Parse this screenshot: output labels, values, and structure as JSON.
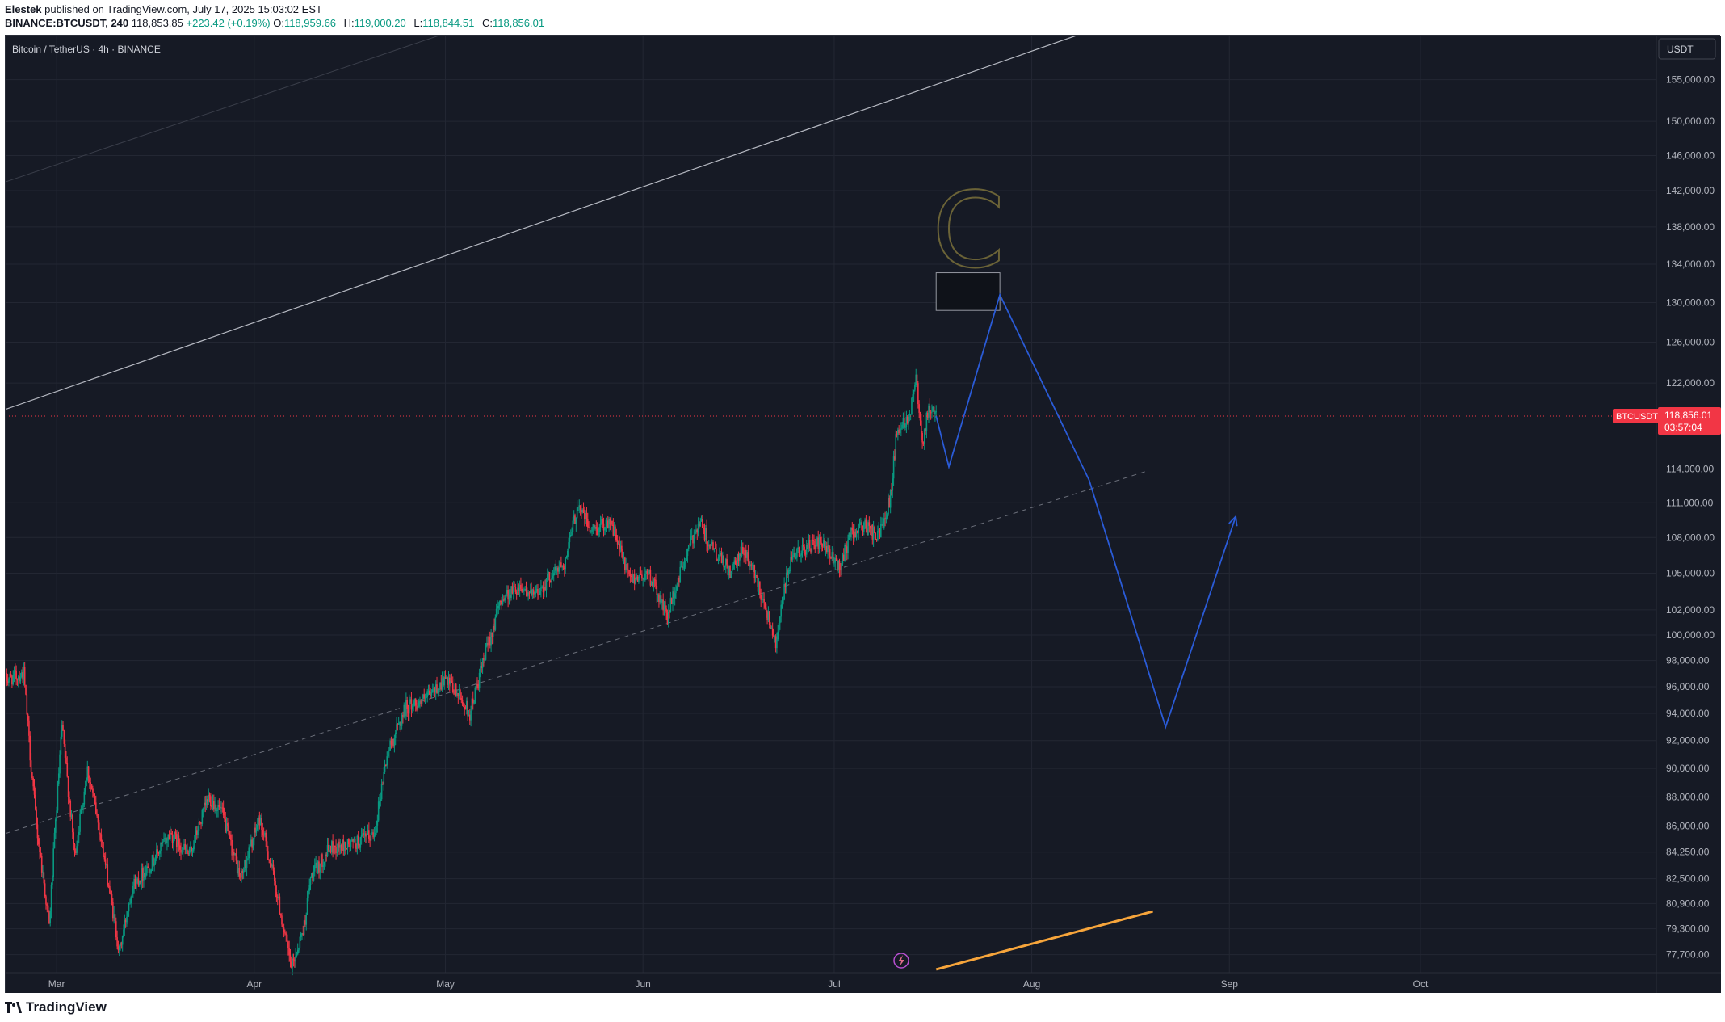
{
  "header": {
    "author": "Elestek",
    "published_text": "published on TradingView.com, July 17, 2025 15:03:02 EST",
    "symbol_line": "BINANCE:BTCUSDT, 240",
    "last": "118,853.85",
    "change": "+223.42 (+0.19%)",
    "o_label": "O:",
    "o_value": "118,959.66",
    "h_label": "H:",
    "h_value": "119,000.20",
    "l_label": "L:",
    "l_value": "118,844.51",
    "c_label": "C:",
    "c_value": "118,856.01"
  },
  "footer": {
    "brand": "TradingView"
  },
  "colors": {
    "background": "#161a25",
    "grid": "#232733",
    "up": "#089981",
    "down": "#f23645",
    "wave": "#2a5bd7",
    "trend": "#f7a53b",
    "letter": "#6b6337",
    "axis_text": "#b2b5be"
  },
  "chart_data": {
    "type": "candlestick",
    "title": "Bitcoin / TetherUS · 4h · BINANCE",
    "currency": "USDT",
    "scale": "log",
    "ylim": [
      76600,
      160500
    ],
    "x_range": [
      "2025-02-21",
      "2025-11-07"
    ],
    "y_ticks": [
      "155,000.00",
      "150,000.00",
      "146,000.00",
      "142,000.00",
      "138,000.00",
      "134,000.00",
      "130,000.00",
      "126,000.00",
      "122,000.00",
      "114,000.00",
      "111,000.00",
      "108,000.00",
      "105,000.00",
      "102,000.00",
      "100,000.00",
      "98,000.00",
      "96,000.00",
      "94,000.00",
      "92,000.00",
      "90,000.00",
      "88,000.00",
      "86,000.00",
      "84,250.00",
      "82,500.00",
      "80,900.00",
      "79,300.00",
      "77,700.00"
    ],
    "x_ticks": [
      {
        "label": "Mar",
        "date": "2025-03-01"
      },
      {
        "label": "Apr",
        "date": "2025-04-01"
      },
      {
        "label": "May",
        "date": "2025-05-01"
      },
      {
        "label": "Jun",
        "date": "2025-06-01"
      },
      {
        "label": "Jul",
        "date": "2025-07-01"
      },
      {
        "label": "Aug",
        "date": "2025-08-01"
      },
      {
        "label": "Sep",
        "date": "2025-09-01"
      },
      {
        "label": "Oct",
        "date": "2025-10-01"
      }
    ],
    "price_path": [
      [
        "2025-02-21",
        96500
      ],
      [
        "2025-02-24",
        97000
      ],
      [
        "2025-02-25",
        91000
      ],
      [
        "2025-02-26",
        86000
      ],
      [
        "2025-02-28",
        79500
      ],
      [
        "2025-03-02",
        93000
      ],
      [
        "2025-03-04",
        84000
      ],
      [
        "2025-03-06",
        90000
      ],
      [
        "2025-03-08",
        85500
      ],
      [
        "2025-03-11",
        77800
      ],
      [
        "2025-03-13",
        82000
      ],
      [
        "2025-03-16",
        83500
      ],
      [
        "2025-03-19",
        85500
      ],
      [
        "2025-03-22",
        84000
      ],
      [
        "2025-03-25",
        88000
      ],
      [
        "2025-03-27",
        87000
      ],
      [
        "2025-03-30",
        82500
      ],
      [
        "2025-04-02",
        86500
      ],
      [
        "2025-04-04",
        83000
      ],
      [
        "2025-04-07",
        76800
      ],
      [
        "2025-04-09",
        79500
      ],
      [
        "2025-04-10",
        82500
      ],
      [
        "2025-04-13",
        84500
      ],
      [
        "2025-04-17",
        84800
      ],
      [
        "2025-04-20",
        85500
      ],
      [
        "2025-04-22",
        91000
      ],
      [
        "2025-04-25",
        94500
      ],
      [
        "2025-04-28",
        95000
      ],
      [
        "2025-05-01",
        96500
      ],
      [
        "2025-05-03",
        95500
      ],
      [
        "2025-05-05",
        94000
      ],
      [
        "2025-05-08",
        99500
      ],
      [
        "2025-05-10",
        103000
      ],
      [
        "2025-05-13",
        104000
      ],
      [
        "2025-05-15",
        103000
      ],
      [
        "2025-05-18",
        105000
      ],
      [
        "2025-05-20",
        106000
      ],
      [
        "2025-05-22",
        111000
      ],
      [
        "2025-05-24",
        108500
      ],
      [
        "2025-05-27",
        109500
      ],
      [
        "2025-05-30",
        104500
      ],
      [
        "2025-06-02",
        105000
      ],
      [
        "2025-06-05",
        101500
      ],
      [
        "2025-06-07",
        105000
      ],
      [
        "2025-06-10",
        109500
      ],
      [
        "2025-06-12",
        107000
      ],
      [
        "2025-06-15",
        105000
      ],
      [
        "2025-06-17",
        107000
      ],
      [
        "2025-06-19",
        104500
      ],
      [
        "2025-06-22",
        99500
      ],
      [
        "2025-06-24",
        105500
      ],
      [
        "2025-06-26",
        107000
      ],
      [
        "2025-06-29",
        107500
      ],
      [
        "2025-07-02",
        105500
      ],
      [
        "2025-07-04",
        108500
      ],
      [
        "2025-07-06",
        109000
      ],
      [
        "2025-07-08",
        108000
      ],
      [
        "2025-07-10",
        111500
      ],
      [
        "2025-07-11",
        117500
      ],
      [
        "2025-07-13",
        119000
      ],
      [
        "2025-07-14",
        122800
      ],
      [
        "2025-07-15",
        116500
      ],
      [
        "2025-07-16",
        119500
      ],
      [
        "2025-07-17",
        118856
      ]
    ],
    "current_price": {
      "symbol": "BTCUSDT",
      "price": "118,856.01",
      "countdown": "03:57:04",
      "value": 118856.01
    },
    "annotations": {
      "letter_label": "C",
      "target_box": {
        "from": "2025-07-17",
        "to": "2025-07-27",
        "low": 129200,
        "high": 133100
      },
      "wave": [
        [
          "2025-07-17",
          118856
        ],
        [
          "2025-07-19",
          114200
        ],
        [
          "2025-07-27",
          130800
        ],
        [
          "2025-08-10",
          113000
        ],
        [
          "2025-08-22",
          93000
        ],
        [
          "2025-09-02",
          109800
        ]
      ],
      "channel_upper": [
        [
          "2025-02-21",
          119500
        ],
        [
          "2025-08-08",
          160500
        ]
      ],
      "channel_lower_dashed": [
        [
          "2025-02-21",
          85500
        ],
        [
          "2025-08-19",
          113800
        ]
      ],
      "channel_faint": [
        [
          "2025-02-21",
          143000
        ],
        [
          "2025-04-30",
          160500
        ]
      ],
      "orange_line": [
        [
          "2025-07-17",
          76800
        ],
        [
          "2025-08-20",
          80400
        ]
      ]
    }
  }
}
